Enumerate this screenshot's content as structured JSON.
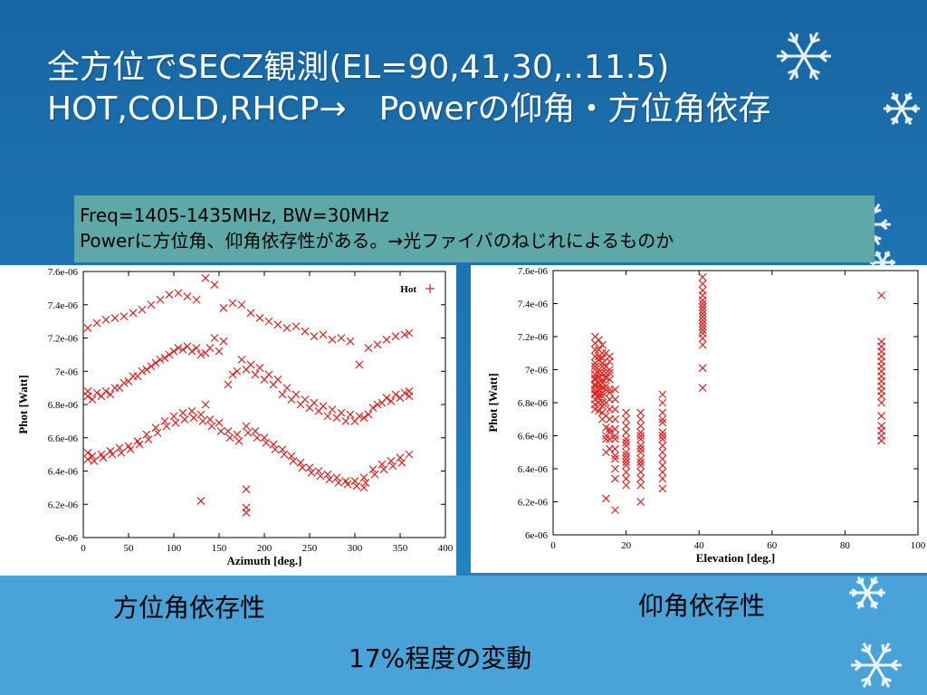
{
  "slide": {
    "title_line1": "全方位でSECZ観測(EL=90,41,30,..11.5)",
    "title_line2": "HOT,COLD,RHCP→　Powerの仰角・方位角依存",
    "info_line1": "Freq=1405-1435MHz, BW=30MHz",
    "info_line2": "Powerに方位角、仰角依存性がある。→光ファイバのねじれによるものか",
    "caption_azimuth": "方位角依存性",
    "caption_elevation": "仰角依存性",
    "caption_variation": "17%程度の変動",
    "colors": {
      "background": "#1e73ad",
      "band": "#4aa3d8",
      "infobox": "#5fa8a8",
      "marker": "#e0201e"
    }
  },
  "chart_data": [
    {
      "type": "scatter",
      "xlabel": "Azimuth [deg.]",
      "ylabel": "Phot [Watt]",
      "xlim": [
        0,
        400
      ],
      "ylim": [
        6e-06,
        7.6e-06
      ],
      "xticks": [
        "0",
        "50",
        "100",
        "150",
        "200",
        "250",
        "300",
        "350",
        "400"
      ],
      "yticks": [
        "6e-06",
        "6.2e-06",
        "6.4e-06",
        "6.6e-06",
        "6.8e-06",
        "7e-06",
        "7.2e-06",
        "7.4e-06",
        "7.6e-06"
      ],
      "legend": {
        "label": "Hot",
        "position": "top-right"
      },
      "grid": false,
      "series": [
        {
          "name": "Hot",
          "x": [
            5,
            15,
            25,
            35,
            45,
            55,
            65,
            75,
            85,
            95,
            105,
            115,
            125,
            135,
            145,
            155,
            165,
            175,
            185,
            195,
            205,
            215,
            225,
            235,
            245,
            255,
            265,
            275,
            285,
            295,
            305,
            315,
            325,
            335,
            345,
            355,
            360,
            5,
            15,
            25,
            35,
            45,
            55,
            65,
            75,
            85,
            95,
            105,
            115,
            125,
            135,
            145,
            155,
            165,
            175,
            185,
            195,
            205,
            215,
            225,
            235,
            245,
            255,
            265,
            275,
            285,
            295,
            305,
            315,
            325,
            335,
            345,
            355,
            360,
            5,
            10,
            20,
            30,
            40,
            50,
            60,
            70,
            80,
            90,
            100,
            110,
            120,
            130,
            140,
            150,
            160,
            170,
            180,
            190,
            200,
            210,
            220,
            230,
            240,
            250,
            260,
            270,
            280,
            290,
            300,
            310,
            320,
            330,
            340,
            350,
            360,
            5,
            10,
            20,
            30,
            40,
            50,
            60,
            70,
            80,
            90,
            100,
            110,
            120,
            130,
            140,
            150,
            160,
            170,
            180,
            190,
            200,
            210,
            220,
            230,
            240,
            250,
            260,
            270,
            280,
            290,
            300,
            310,
            320,
            330,
            340,
            350,
            360,
            5,
            12,
            22,
            32,
            42,
            52,
            62,
            72,
            82,
            92,
            102,
            112,
            122,
            132,
            142,
            152,
            162,
            172,
            182,
            192,
            202,
            212,
            222,
            232,
            242,
            252,
            262,
            272,
            282,
            292,
            302,
            312,
            322,
            332,
            342,
            352,
            130,
            180,
            180,
            180,
            135,
            310
          ],
          "y": [
            7.26e-06,
            7.29e-06,
            7.31e-06,
            7.32e-06,
            7.33e-06,
            7.35e-06,
            7.37e-06,
            7.4e-06,
            7.43e-06,
            7.46e-06,
            7.47e-06,
            7.45e-06,
            7.43e-06,
            7.56e-06,
            7.52e-06,
            7.38e-06,
            7.41e-06,
            7.4e-06,
            7.35e-06,
            7.32e-06,
            7.3e-06,
            7.28e-06,
            7.26e-06,
            7.27e-06,
            7.24e-06,
            7.21e-06,
            7.22e-06,
            7.19e-06,
            7.2e-06,
            7.18e-06,
            7.04e-06,
            7.14e-06,
            7.16e-06,
            7.19e-06,
            7.21e-06,
            7.22e-06,
            7.23e-06,
            6.88e-06,
            6.87e-06,
            6.88e-06,
            6.9e-06,
            6.93e-06,
            6.97e-06,
            7e-06,
            7.03e-06,
            7.07e-06,
            7.1e-06,
            7.14e-06,
            7.15e-06,
            7.14e-06,
            7.11e-06,
            7.2e-06,
            7.18e-06,
            6.98e-06,
            7.07e-06,
            7.04e-06,
            7.02e-06,
            6.98e-06,
            6.95e-06,
            6.9e-06,
            6.86e-06,
            6.83e-06,
            6.81e-06,
            6.79e-06,
            6.77e-06,
            6.75e-06,
            6.74e-06,
            6.73e-06,
            6.74e-06,
            6.8e-06,
            6.84e-06,
            6.86e-06,
            6.87e-06,
            6.88e-06,
            6.85e-06,
            6.83e-06,
            6.85e-06,
            6.86e-06,
            6.9e-06,
            6.94e-06,
            6.97e-06,
            7.01e-06,
            7.05e-06,
            7.08e-06,
            7.12e-06,
            7.13e-06,
            7.12e-06,
            7.1e-06,
            7.14e-06,
            7.12e-06,
            6.92e-06,
            7e-06,
            7.01e-06,
            6.98e-06,
            6.95e-06,
            6.92e-06,
            6.86e-06,
            6.83e-06,
            6.8e-06,
            6.78e-06,
            6.76e-06,
            6.73e-06,
            6.72e-06,
            6.7e-06,
            6.7e-06,
            6.72e-06,
            6.78e-06,
            6.81e-06,
            6.82e-06,
            6.84e-06,
            6.85e-06,
            6.51e-06,
            6.49e-06,
            6.5e-06,
            6.52e-06,
            6.54e-06,
            6.55e-06,
            6.58e-06,
            6.62e-06,
            6.66e-06,
            6.7e-06,
            6.73e-06,
            6.75e-06,
            6.76e-06,
            6.74e-06,
            6.71e-06,
            6.69e-06,
            6.64e-06,
            6.62e-06,
            6.67e-06,
            6.64e-06,
            6.6e-06,
            6.56e-06,
            6.53e-06,
            6.49e-06,
            6.45e-06,
            6.42e-06,
            6.4e-06,
            6.38e-06,
            6.36e-06,
            6.34e-06,
            6.34e-06,
            6.36e-06,
            6.41e-06,
            6.44e-06,
            6.46e-06,
            6.48e-06,
            6.5e-06,
            6.47e-06,
            6.46e-06,
            6.48e-06,
            6.5e-06,
            6.51e-06,
            6.53e-06,
            6.56e-06,
            6.59e-06,
            6.63e-06,
            6.67e-06,
            6.69e-06,
            6.71e-06,
            6.72e-06,
            6.7e-06,
            6.67e-06,
            6.64e-06,
            6.6e-06,
            6.58e-06,
            6.63e-06,
            6.6e-06,
            6.57e-06,
            6.53e-06,
            6.5e-06,
            6.46e-06,
            6.42e-06,
            6.39e-06,
            6.37e-06,
            6.35e-06,
            6.33e-06,
            6.32e-06,
            6.31e-06,
            6.33e-06,
            6.38e-06,
            6.41e-06,
            6.43e-06,
            6.45e-06,
            6.22e-06,
            6.29e-06,
            6.18e-06,
            6.15e-06,
            6.8e-06,
            6.3e-06
          ]
        }
      ]
    },
    {
      "type": "scatter",
      "xlabel": "Elevation [deg.]",
      "ylabel": "Phot [Watt]",
      "xlim": [
        0,
        100
      ],
      "ylim": [
        6e-06,
        7.6e-06
      ],
      "xticks": [
        "0",
        "20",
        "40",
        "60",
        "80",
        "100"
      ],
      "yticks": [
        "6e-06",
        "6.2e-06",
        "6.4e-06",
        "6.6e-06",
        "6.8e-06",
        "7e-06",
        "7.2e-06",
        "7.4e-06",
        "7.6e-06"
      ],
      "grid": false,
      "series": [
        {
          "x": [
            11.5,
            11.5,
            11.5,
            11.5,
            11.5,
            11.5,
            11.5,
            11.5,
            11.5,
            11.5,
            11.5,
            11.5,
            11.5,
            11.5,
            11.5,
            11.5,
            11.5,
            11.5,
            12.5,
            12.5,
            12.5,
            12.5,
            12.5,
            12.5,
            12.5,
            12.5,
            12.5,
            12.5,
            12.5,
            12.5,
            12.5,
            12.5,
            13.5,
            13.5,
            13.5,
            13.5,
            13.5,
            13.5,
            13.5,
            13.5,
            13.5,
            13.5,
            13.5,
            13.5,
            13.5,
            13.5,
            13.5,
            14.5,
            14.5,
            14.5,
            14.5,
            14.5,
            14.5,
            14.5,
            14.5,
            14.5,
            14.5,
            14.5,
            14.5,
            14.5,
            15.5,
            15.5,
            15.5,
            15.5,
            15.5,
            15.5,
            15.5,
            15.5,
            15.5,
            15.5,
            15.5,
            15.5,
            15.5,
            15.5,
            17,
            17,
            17,
            17,
            17,
            17,
            17,
            17,
            17,
            17,
            17,
            17,
            17,
            20,
            20,
            20,
            20,
            20,
            20,
            20,
            20,
            20,
            20,
            20,
            20,
            20,
            20,
            20,
            24,
            24,
            24,
            24,
            24,
            24,
            24,
            24,
            24,
            24,
            24,
            24,
            24,
            24,
            24,
            24,
            30,
            30,
            30,
            30,
            30,
            30,
            30,
            30,
            30,
            30,
            30,
            30,
            30,
            30,
            30,
            41,
            41,
            41,
            41,
            41,
            41,
            41,
            41,
            41,
            41,
            41,
            41,
            41,
            41,
            41,
            41,
            41,
            41,
            41,
            90,
            90,
            90,
            90,
            90,
            90,
            90,
            90,
            90,
            90,
            90,
            90,
            90,
            90,
            90,
            90,
            90,
            90,
            90
          ],
          "y": [
            7.2e-06,
            7.16e-06,
            7.12e-06,
            7.08e-06,
            7.04e-06,
            7e-06,
            6.97e-06,
            6.94e-06,
            6.91e-06,
            6.88e-06,
            6.85e-06,
            6.82e-06,
            6.79e-06,
            6.76e-06,
            6.9e-06,
            7.02e-06,
            6.86e-06,
            6.95e-06,
            7.18e-06,
            7.12e-06,
            7.06e-06,
            7e-06,
            6.95e-06,
            6.9e-06,
            6.85e-06,
            6.8e-06,
            6.75e-06,
            6.98e-06,
            7.08e-06,
            6.88e-06,
            6.92e-06,
            6.83e-06,
            7.15e-06,
            7.1e-06,
            7.04e-06,
            6.98e-06,
            6.92e-06,
            6.86e-06,
            6.8e-06,
            6.74e-06,
            6.7e-06,
            6.94e-06,
            7.02e-06,
            6.89e-06,
            6.84e-06,
            6.78e-06,
            7.07e-06,
            7.1e-06,
            7.02e-06,
            6.95e-06,
            6.88e-06,
            6.8e-06,
            6.72e-06,
            6.65e-06,
            6.58e-06,
            6.5e-06,
            6.22e-06,
            6.9e-06,
            6.98e-06,
            6.6e-06,
            7.08e-06,
            7.05e-06,
            7e-06,
            6.94e-06,
            6.88e-06,
            6.82e-06,
            6.76e-06,
            6.7e-06,
            6.64e-06,
            6.58e-06,
            6.52e-06,
            6.98e-06,
            6.86e-06,
            6.62e-06,
            6.88e-06,
            6.82e-06,
            6.76e-06,
            6.7e-06,
            6.64e-06,
            6.58e-06,
            6.52e-06,
            6.46e-06,
            6.4e-06,
            6.34e-06,
            6.15e-06,
            6.6e-06,
            6.48e-06,
            6.74e-06,
            6.7e-06,
            6.66e-06,
            6.62e-06,
            6.58e-06,
            6.54e-06,
            6.5e-06,
            6.46e-06,
            6.42e-06,
            6.38e-06,
            6.34e-06,
            6.3e-06,
            6.56e-06,
            6.44e-06,
            6.48e-06,
            6.74e-06,
            6.7e-06,
            6.66e-06,
            6.62e-06,
            6.58e-06,
            6.54e-06,
            6.5e-06,
            6.46e-06,
            6.42e-06,
            6.38e-06,
            6.34e-06,
            6.3e-06,
            6.2e-06,
            6.6e-06,
            6.52e-06,
            6.44e-06,
            6.85e-06,
            6.8e-06,
            6.74e-06,
            6.68e-06,
            6.62e-06,
            6.58e-06,
            6.54e-06,
            6.5e-06,
            6.46e-06,
            6.42e-06,
            6.38e-06,
            6.34e-06,
            6.28e-06,
            6.6e-06,
            6.7e-06,
            7.56e-06,
            7.52e-06,
            7.48e-06,
            7.45e-06,
            7.42e-06,
            7.4e-06,
            7.38e-06,
            7.36e-06,
            7.34e-06,
            7.32e-06,
            7.3e-06,
            7.28e-06,
            7.26e-06,
            7.24e-06,
            7.22e-06,
            7.19e-06,
            7.15e-06,
            7.01e-06,
            6.89e-06,
            7.45e-06,
            7.17e-06,
            7.14e-06,
            7.11e-06,
            7.08e-06,
            7.05e-06,
            7.02e-06,
            6.99e-06,
            6.96e-06,
            6.93e-06,
            6.9e-06,
            6.87e-06,
            6.84e-06,
            6.8e-06,
            6.72e-06,
            6.66e-06,
            6.63e-06,
            6.6e-06,
            6.57e-06
          ]
        }
      ]
    }
  ]
}
